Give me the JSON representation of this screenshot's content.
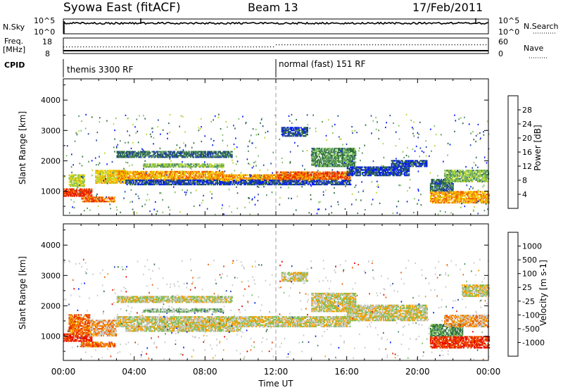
{
  "header": {
    "station": "Syowa East (fitACF)",
    "beam": "Beam 13",
    "date": "17/Feb/2011"
  },
  "strips": {
    "nsky_label": "N.Sky",
    "nsky_ticks": [
      "10^5",
      "10^0"
    ],
    "nsearch_label": "N.Search",
    "nsearch_ticks": [
      "10^5",
      "10^0"
    ],
    "freq_label_1": "Freq.",
    "freq_label_2": "[MHz]",
    "freq_ticks": [
      "18",
      "8"
    ],
    "nave_label": "Nave",
    "nave_ticks": [
      "60",
      "0"
    ],
    "cpid_label": "CPID",
    "cpid_segments": [
      {
        "label": "themis 3300 RF",
        "start_hour": 0
      },
      {
        "label": "normal (fast) 151 RF",
        "start_hour": 12
      }
    ]
  },
  "colors": {
    "power_scale": [
      "#0018ff",
      "#1e3fa6",
      "#2e6a3c",
      "#4d8b5f",
      "#7fc05a",
      "#b9d530",
      "#f2d000",
      "#f6a000",
      "#f06000",
      "#e82000"
    ],
    "velocity_scale": [
      "#0018ff",
      "#1e3fa6",
      "#2e6a3c",
      "#4d8b5f",
      "#7fc05a",
      "#c8c8c8",
      "#f6a000",
      "#f06000",
      "#e83000",
      "#e80000"
    ]
  },
  "chart_data": [
    {
      "type": "heatmap",
      "panel": "power",
      "ylabel": "Slant Range [km]",
      "yticks": [
        1000,
        2000,
        3000,
        4000
      ],
      "ylim": [
        200,
        4700
      ],
      "xlim": [
        0,
        24
      ],
      "colorbar_label": "Power [dB]",
      "colorbar_ticks": [
        "4",
        "8",
        "12",
        "16",
        "20",
        "24",
        "28"
      ],
      "bands": [
        {
          "t0": 0.0,
          "t1": 1.6,
          "range": [
            820,
            1050
          ],
          "level": 9
        },
        {
          "t0": 1.0,
          "t1": 2.9,
          "range": [
            640,
            780
          ],
          "level": 8
        },
        {
          "t0": 0.3,
          "t1": 1.2,
          "range": [
            1150,
            1550
          ],
          "level": 5
        },
        {
          "t0": 1.8,
          "t1": 3.5,
          "range": [
            1250,
            1700
          ],
          "level": 6
        },
        {
          "t0": 3.0,
          "t1": 9.0,
          "range": [
            1350,
            1650
          ],
          "level": 7
        },
        {
          "t0": 3.5,
          "t1": 10.0,
          "range": [
            1200,
            1350
          ],
          "level": 1
        },
        {
          "t0": 9.0,
          "t1": 14.0,
          "range": [
            1330,
            1550
          ],
          "level": 7
        },
        {
          "t0": 10.0,
          "t1": 16.2,
          "range": [
            1200,
            1340
          ],
          "level": 1
        },
        {
          "t0": 12.0,
          "t1": 16.2,
          "range": [
            1380,
            1620
          ],
          "level": 8
        },
        {
          "t0": 4.5,
          "t1": 9.0,
          "range": [
            1780,
            1880
          ],
          "level": 4
        },
        {
          "t0": 3.0,
          "t1": 9.5,
          "range": [
            2100,
            2300
          ],
          "level": 2
        },
        {
          "t0": 14.0,
          "t1": 16.5,
          "range": [
            1800,
            2400
          ],
          "level": 3
        },
        {
          "t0": 16.0,
          "t1": 19.5,
          "range": [
            1500,
            1800
          ],
          "level": 1
        },
        {
          "t0": 18.5,
          "t1": 20.5,
          "range": [
            1800,
            2000
          ],
          "level": 1
        },
        {
          "t0": 12.3,
          "t1": 13.8,
          "range": [
            2800,
            3100
          ],
          "level": 1
        },
        {
          "t0": 20.7,
          "t1": 24.0,
          "range": [
            600,
            1000
          ],
          "level": 7
        },
        {
          "t0": 20.7,
          "t1": 22.0,
          "range": [
            1000,
            1400
          ],
          "level": 2
        },
        {
          "t0": 21.5,
          "t1": 24.0,
          "range": [
            1300,
            1700
          ],
          "level": 4
        }
      ]
    },
    {
      "type": "heatmap",
      "panel": "velocity",
      "xlabel": "Time UT",
      "xticks": [
        "00:00",
        "04:00",
        "08:00",
        "12:00",
        "16:00",
        "20:00",
        "00:00"
      ],
      "ylabel": "Slant Range [km]",
      "yticks": [
        1000,
        2000,
        3000,
        4000
      ],
      "ylim": [
        200,
        4700
      ],
      "xlim": [
        0,
        24
      ],
      "colorbar_label": "Velocity [m s-1]",
      "colorbar_ticks": [
        "-1000",
        "-500",
        "-100",
        "-25",
        "25",
        "100",
        "500",
        "1000"
      ],
      "bands": [
        {
          "t0": 0.0,
          "t1": 1.6,
          "range": [
            820,
            1050
          ],
          "level": 8
        },
        {
          "t0": 1.0,
          "t1": 2.9,
          "range": [
            640,
            780
          ],
          "level": 7
        },
        {
          "t0": 0.3,
          "t1": 1.5,
          "range": [
            1050,
            1700
          ],
          "level": 7
        },
        {
          "t0": 1.5,
          "t1": 3.0,
          "range": [
            1000,
            1500
          ],
          "level": 6
        },
        {
          "t0": 3.0,
          "t1": 16.2,
          "range": [
            1300,
            1650
          ],
          "level": 5
        },
        {
          "t0": 3.5,
          "t1": 10.0,
          "range": [
            1150,
            1300
          ],
          "level": 5
        },
        {
          "t0": 3.0,
          "t1": 9.5,
          "range": [
            2100,
            2300
          ],
          "level": 5
        },
        {
          "t0": 4.5,
          "t1": 9.0,
          "range": [
            1780,
            1880
          ],
          "level": 4
        },
        {
          "t0": 14.0,
          "t1": 16.5,
          "range": [
            1800,
            2400
          ],
          "level": 5
        },
        {
          "t0": 16.0,
          "t1": 20.5,
          "range": [
            1500,
            2000
          ],
          "level": 5
        },
        {
          "t0": 12.3,
          "t1": 13.8,
          "range": [
            2800,
            3100
          ],
          "level": 5
        },
        {
          "t0": 20.7,
          "t1": 24.0,
          "range": [
            600,
            1000
          ],
          "level": 8
        },
        {
          "t0": 20.7,
          "t1": 22.5,
          "range": [
            1000,
            1400
          ],
          "level": 3
        },
        {
          "t0": 21.5,
          "t1": 24.0,
          "range": [
            1300,
            1700
          ],
          "level": 6
        },
        {
          "t0": 22.5,
          "t1": 24.0,
          "range": [
            2300,
            2700
          ],
          "level": 5
        }
      ]
    }
  ]
}
